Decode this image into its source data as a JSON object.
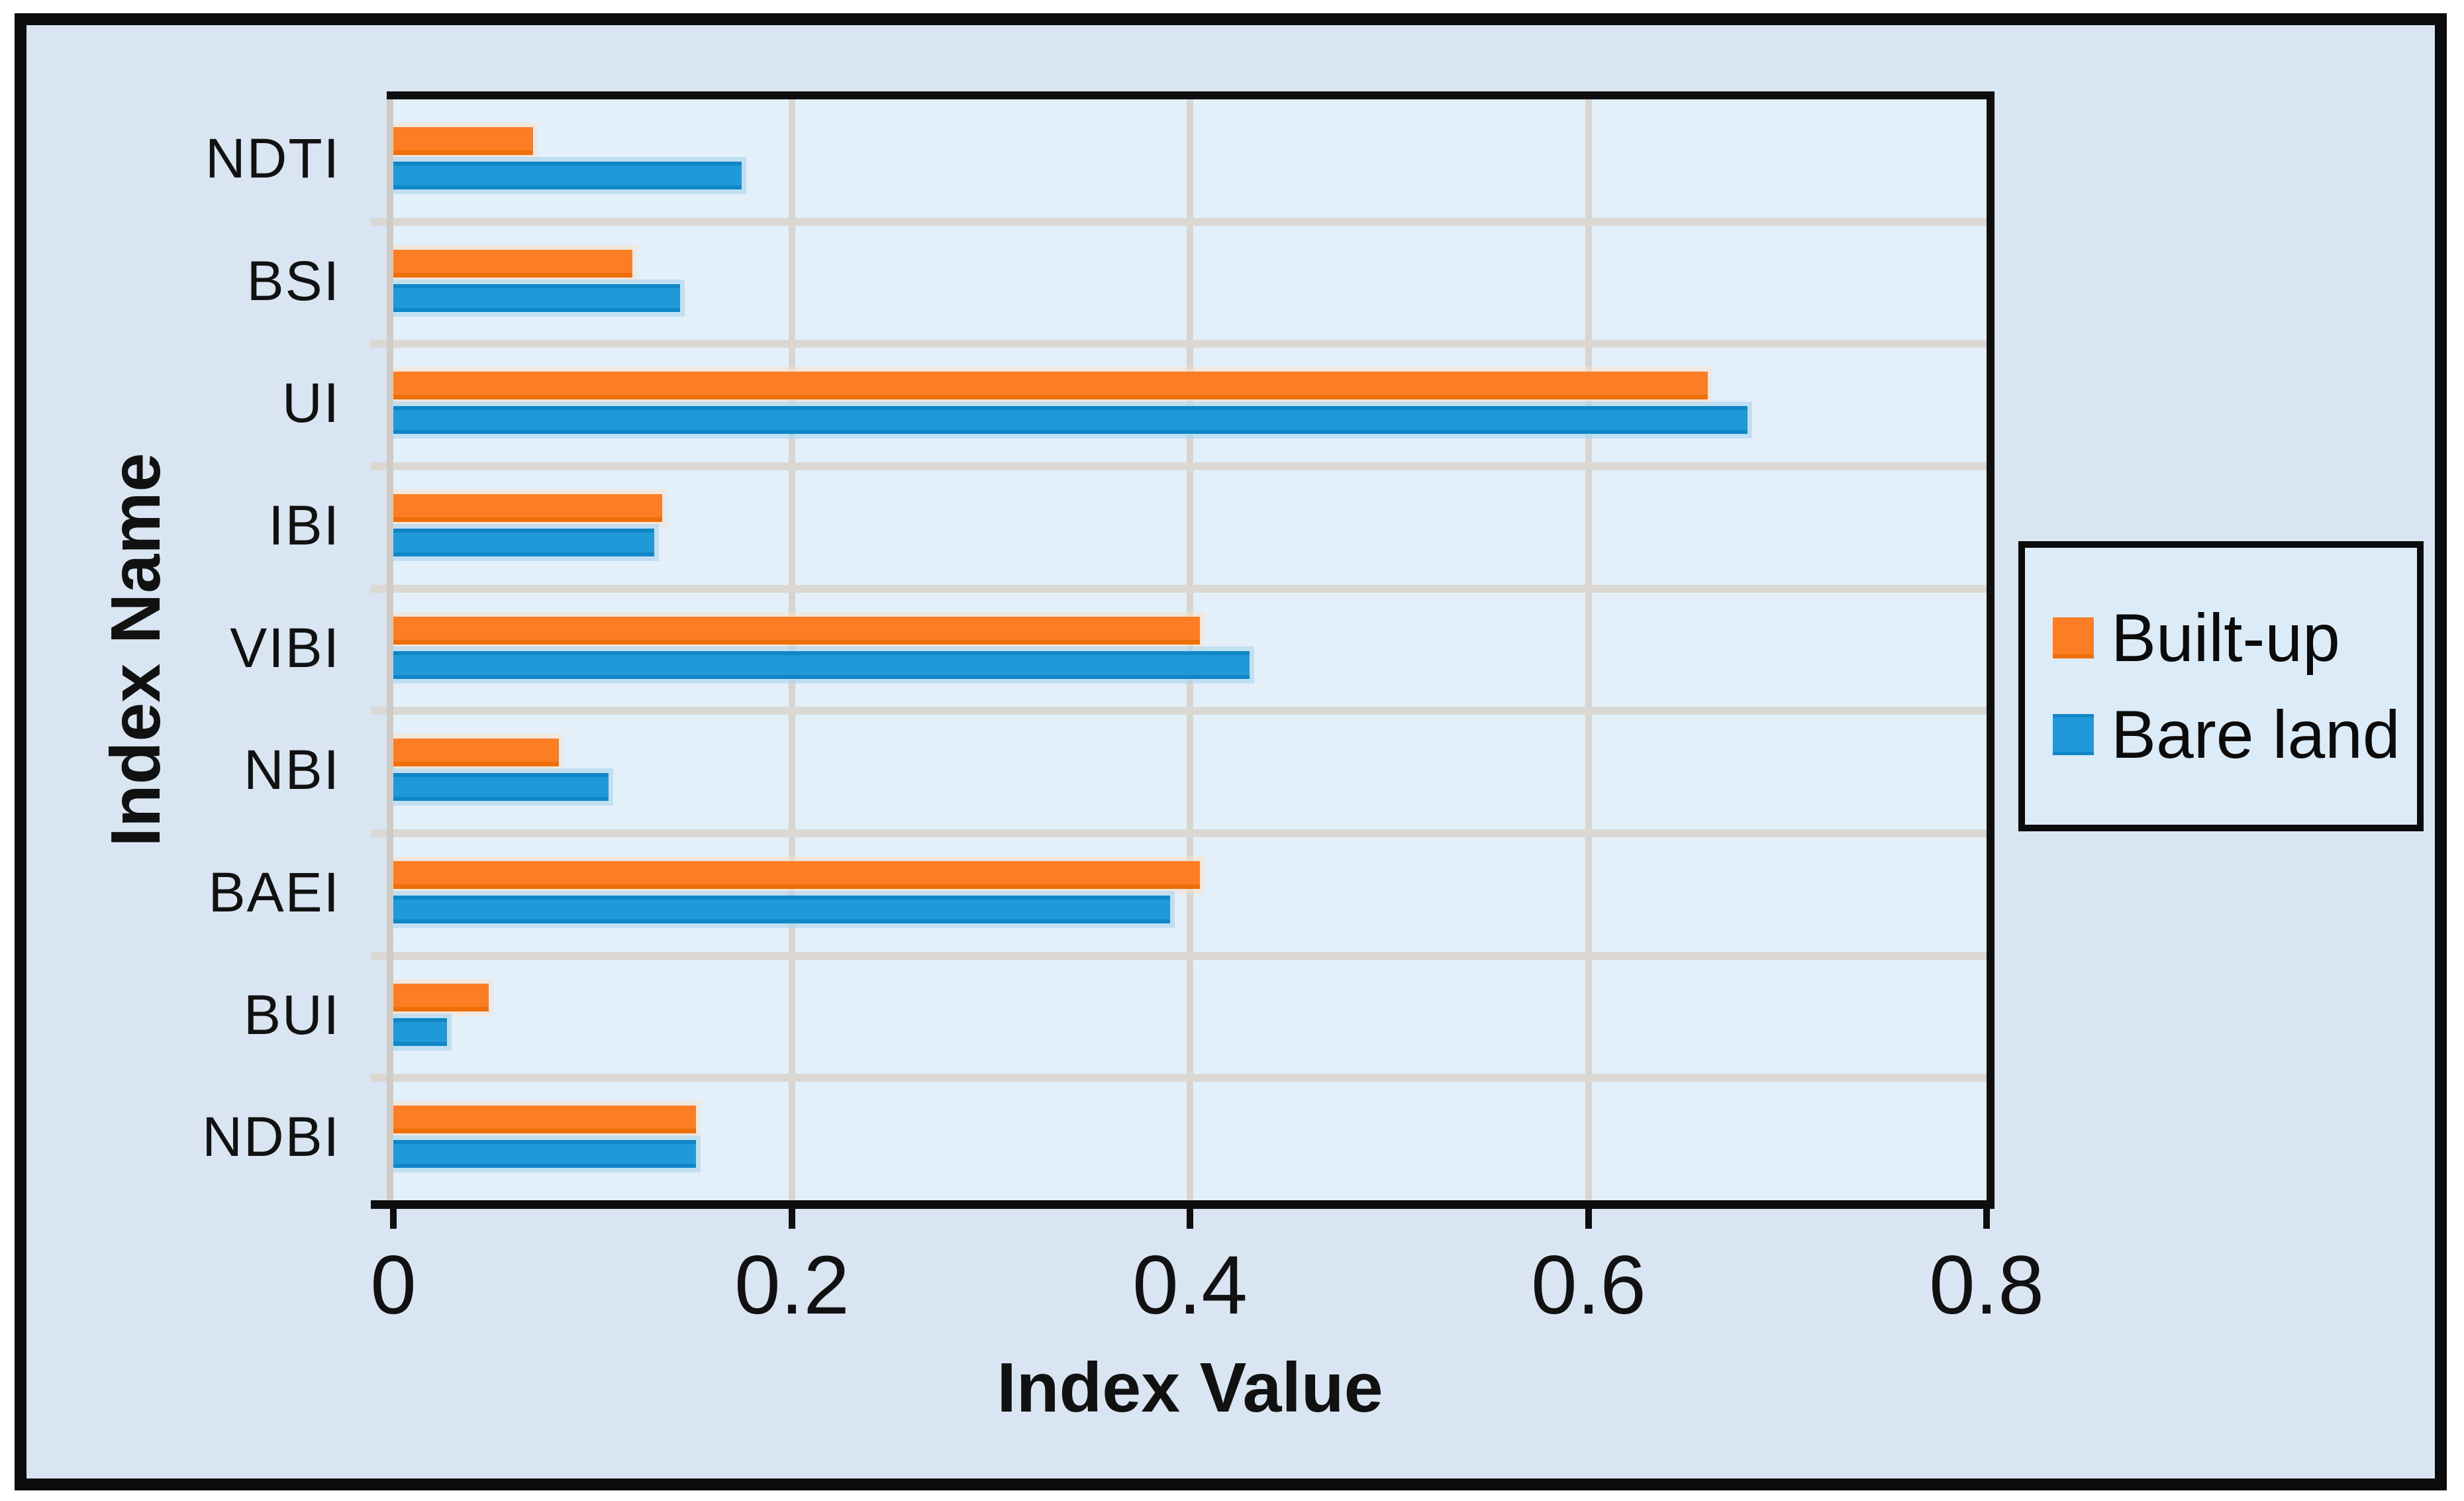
{
  "chart_data": {
    "type": "bar",
    "orientation": "horizontal",
    "title": "",
    "xlabel": "Index Value",
    "ylabel": "Index Name",
    "categories": [
      "NDTI",
      "BSI",
      "UI",
      "IBI",
      "VIBI",
      "NBI",
      "BAEI",
      "BUI",
      "NDBI"
    ],
    "series": [
      {
        "name": "Built-up",
        "color": "#fb7d24",
        "values": [
          0.07,
          0.12,
          0.66,
          0.135,
          0.405,
          0.083,
          0.405,
          0.048,
          0.152
        ]
      },
      {
        "name": "Bare land",
        "color": "#2199d8",
        "values": [
          0.175,
          0.144,
          0.68,
          0.131,
          0.43,
          0.108,
          0.39,
          0.027,
          0.152
        ]
      }
    ],
    "xlim": [
      0,
      0.8
    ],
    "xticks": [
      "0",
      "0.2",
      "0.4",
      "0.6",
      "0.8"
    ],
    "xtick_values": [
      0,
      0.2,
      0.4,
      0.6,
      0.8
    ],
    "grid": true,
    "legend_position": "right",
    "plot_background": "#e3f0fa",
    "figure_background": "#d9e5f2"
  }
}
